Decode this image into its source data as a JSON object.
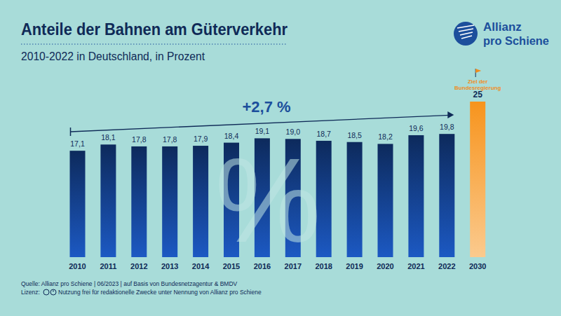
{
  "chart_data": {
    "type": "bar",
    "title": "Anteile der Bahnen am Güterverkehr",
    "subtitle": "2010-2022 in Deutschland, in Prozent",
    "categories": [
      "2010",
      "2011",
      "2012",
      "2013",
      "2014",
      "2015",
      "2016",
      "2017",
      "2018",
      "2019",
      "2020",
      "2021",
      "2022",
      "2030"
    ],
    "values": [
      17.1,
      18.1,
      17.8,
      17.8,
      17.9,
      18.4,
      19.1,
      19.0,
      18.7,
      18.5,
      18.2,
      19.6,
      19.8,
      25
    ],
    "value_labels": [
      "17,1",
      "18,1",
      "17,8",
      "17,8",
      "17,9",
      "18,4",
      "19,1",
      "19,0",
      "18,7",
      "18,5",
      "18,2",
      "19,6",
      "19,8",
      "25"
    ],
    "colors": [
      "#0d2a5c",
      "#0d2a5c",
      "#0d2a5c",
      "#0d2a5c",
      "#0d2a5c",
      "#0d2a5c",
      "#0d2a5c",
      "#0d2a5c",
      "#0d2a5c",
      "#0d2a5c",
      "#0d2a5c",
      "#0d2a5c",
      "#0d2a5c",
      "#f7941d"
    ],
    "ylim": [
      0,
      25
    ],
    "data_labels": true,
    "tick_labels": "x",
    "annotations": {
      "trend": "+2,7 %",
      "target": [
        "Ziel der",
        "Bundesregierung"
      ],
      "watermark": "%"
    },
    "logo": [
      "Allianz",
      "pro Schiene"
    ],
    "source": "Quelle: Allianz pro Schiene | 06/2023 | auf Basis von Bundesnetzagentur & BMDV",
    "license": "Lizenz:",
    "license_text": "Nutzung frei für redaktionelle Zwecke unter Nennung von Allianz pro Schiene"
  }
}
